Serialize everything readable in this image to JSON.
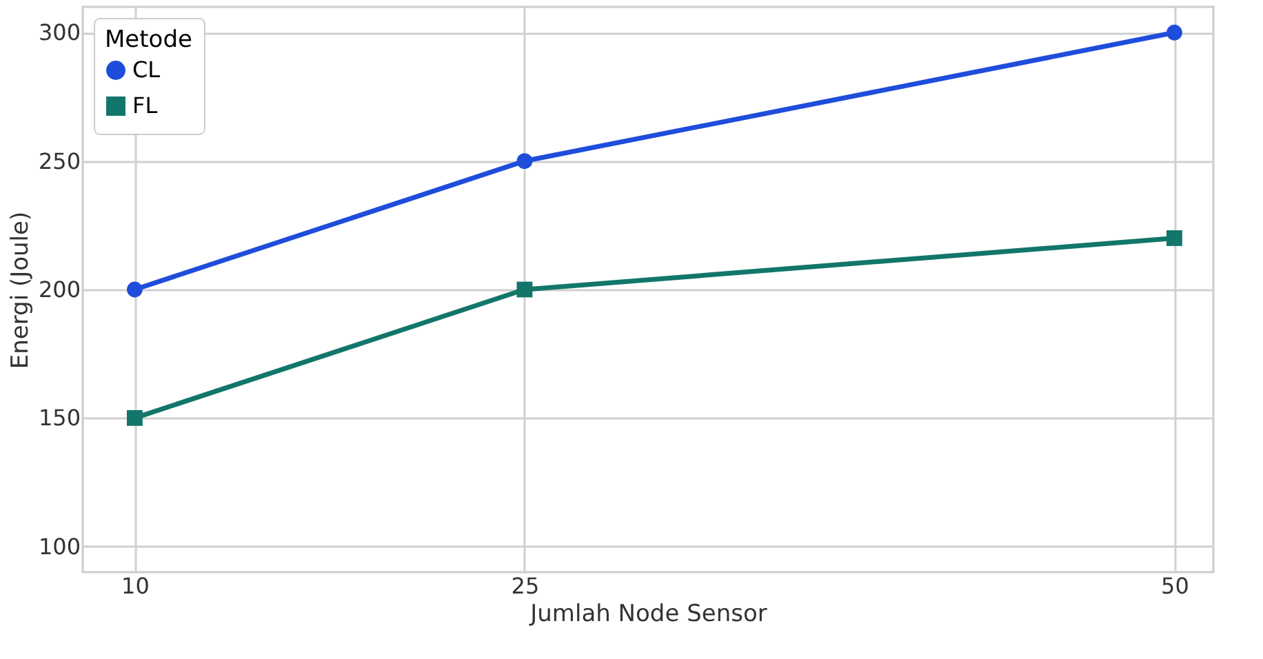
{
  "chart_data": {
    "type": "line",
    "xlabel": "Jumlah Node Sensor",
    "ylabel": "Energi (Joule)",
    "legend_title": "Metode",
    "x": [
      10,
      25,
      50
    ],
    "xlim": [
      8,
      51.5
    ],
    "xticks": [
      10,
      25,
      50
    ],
    "ylim": [
      90,
      310
    ],
    "yticks": [
      100,
      150,
      200,
      250,
      300
    ],
    "grid": true,
    "legend": "top left",
    "line_style": "solid",
    "series": [
      {
        "name": "CL",
        "color": "#1f4ddb",
        "marker": "circle",
        "values": [
          200,
          250,
          300
        ]
      },
      {
        "name": "FL",
        "color": "#12766a",
        "marker": "square",
        "values": [
          150,
          200,
          220
        ]
      }
    ]
  }
}
